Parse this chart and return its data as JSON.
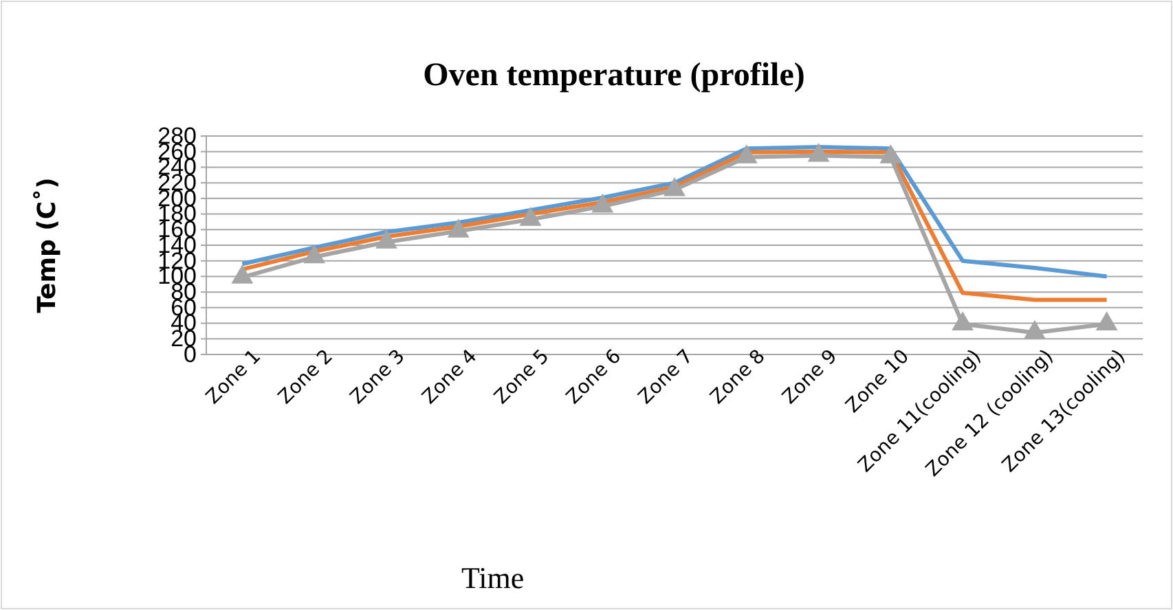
{
  "chart_data": {
    "type": "line",
    "title": "Oven temperature (profile)",
    "xlabel": "Time",
    "ylabel": "Temp (C˚)",
    "categories": [
      "Zone 1",
      "Zone 2",
      "Zone 3",
      "Zone 4",
      "Zone 5",
      "Zone 6",
      "Zone 7",
      "Zone 8",
      "Zone 9",
      "Zone 10",
      "Zone 11(cooling)",
      "Zone 12 (cooling)",
      "Zone 13(cooling)"
    ],
    "series": [
      {
        "color": "#5b9bd5",
        "marker": "none",
        "values": [
          116,
          137,
          157,
          169,
          185,
          201,
          220,
          264,
          266,
          264,
          120,
          111,
          100
        ]
      },
      {
        "color": "#ed7d31",
        "marker": "none",
        "values": [
          109,
          132,
          151,
          164,
          180,
          195,
          215,
          259,
          260,
          259,
          79,
          70,
          70
        ]
      },
      {
        "color": "#a5a5a5",
        "marker": "triangle",
        "values": [
          99,
          125,
          144,
          158,
          173,
          190,
          211,
          253,
          255,
          253,
          39,
          28,
          39
        ]
      }
    ],
    "ylim": [
      0,
      280
    ],
    "yticks": [
      0,
      20,
      40,
      60,
      80,
      100,
      120,
      140,
      160,
      180,
      200,
      220,
      240,
      260,
      280
    ],
    "grid": "y"
  }
}
